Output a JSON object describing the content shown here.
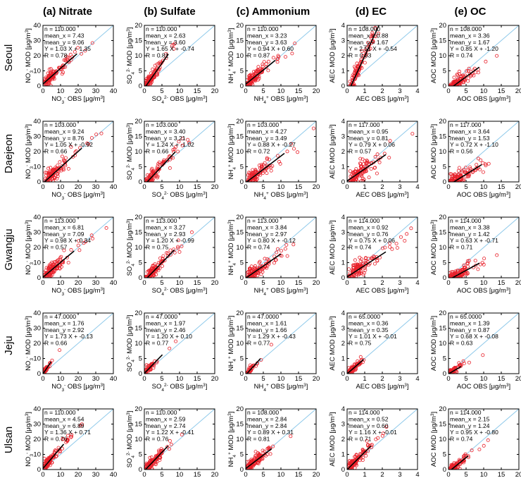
{
  "column_titles": [
    "(a) Nitrate",
    "(b) Sulfate",
    "(c) Ammonium",
    "(d) EC",
    "(e) OC"
  ],
  "row_titles": [
    "Seoul",
    "Daejeon",
    "Gwangju",
    "Jeju",
    "Ulsan"
  ],
  "colors": {
    "points": "#e8202a",
    "regression": "#000000",
    "one_to_one": "#8ec9ea",
    "axes": "#000000"
  },
  "chart_data": [
    {
      "type": "scatter",
      "species": "Nitrate",
      "site": "Seoul",
      "xlabel": "NO3- OBS [μg/m3]",
      "ylabel": "NO3- MOD [μg/m3]",
      "xlim": [
        0,
        40
      ],
      "ylim": [
        0,
        40
      ],
      "ticks": [
        0,
        10,
        20,
        30,
        40
      ],
      "n": "110.000",
      "mean_x": "7.43",
      "mean_y": "9.06",
      "fit": "1.03 X + 1.35",
      "slope": 1.03,
      "intercept": 1.35,
      "R": "0.78"
    },
    {
      "type": "scatter",
      "species": "Sulfate",
      "site": "Seoul",
      "xlabel": "SO4 2- OBS [μg/m3]",
      "ylabel": "SO4 2- MOD [μg/m3]",
      "xlim": [
        0,
        20
      ],
      "ylim": [
        0,
        20
      ],
      "ticks": [
        0,
        5,
        10,
        15,
        20
      ],
      "n": "110.000",
      "mean_x": "2.63",
      "mean_y": "3.60",
      "fit": "1.65 X + -0.74",
      "slope": 1.65,
      "intercept": -0.74,
      "R": "0.81"
    },
    {
      "type": "scatter",
      "species": "Ammonium",
      "site": "Seoul",
      "xlabel": "NH4+ OBS [μg/m3]",
      "ylabel": "NH4+ MOD [μg/m3]",
      "xlim": [
        0,
        20
      ],
      "ylim": [
        0,
        20
      ],
      "ticks": [
        0,
        5,
        10,
        15,
        20
      ],
      "n": "110.000",
      "mean_x": "3.23",
      "mean_y": "3.63",
      "fit": "0.94 X + 0.60",
      "slope": 0.94,
      "intercept": 0.6,
      "R": "0.87"
    },
    {
      "type": "scatter",
      "species": "EC",
      "site": "Seoul",
      "xlabel": "AEC OBS [μg/m3]",
      "ylabel": "AEC MOD [μg/m3]",
      "xlim": [
        0,
        4
      ],
      "ylim": [
        0,
        4
      ],
      "ticks": [
        0,
        1,
        2,
        3,
        4
      ],
      "n": "108.000",
      "mean_x": "0.88",
      "mean_y": "1.67",
      "fit": "2.51 X + -0.54",
      "slope": 2.51,
      "intercept": -0.54,
      "R": "0.63"
    },
    {
      "type": "scatter",
      "species": "OC",
      "site": "Seoul",
      "xlabel": "AOC OBS [μg/m3]",
      "ylabel": "AOC MOD [μg/m3]",
      "xlim": [
        0,
        20
      ],
      "ylim": [
        0,
        20
      ],
      "ticks": [
        0,
        5,
        10,
        15,
        20
      ],
      "n": "108.000",
      "mean_x": "3.36",
      "mean_y": "1.67",
      "fit": "0.85 X + -1.20",
      "slope": 0.85,
      "intercept": -1.2,
      "R": "0.74"
    },
    {
      "type": "scatter",
      "species": "Nitrate",
      "site": "Daejeon",
      "xlabel": "NO3- OBS [μg/m3]",
      "ylabel": "NO3- MOD [μg/m3]",
      "xlim": [
        0,
        40
      ],
      "ylim": [
        0,
        40
      ],
      "ticks": [
        0,
        10,
        20,
        30,
        40
      ],
      "n": "103.000",
      "mean_x": "9.24",
      "mean_y": "8.76",
      "fit": "1.05 X + -0.92",
      "slope": 1.05,
      "intercept": -0.92,
      "R": "0.66"
    },
    {
      "type": "scatter",
      "species": "Sulfate",
      "site": "Daejeon",
      "xlabel": "SO4 2- OBS [μg/m3]",
      "ylabel": "SO4 2- MOD [μg/m3]",
      "xlim": [
        0,
        20
      ],
      "ylim": [
        0,
        20
      ],
      "ticks": [
        0,
        5,
        10,
        15,
        20
      ],
      "n": "103.000",
      "mean_x": "3.40",
      "mean_y": "3.21",
      "fit": "1.24 X + -1.02",
      "slope": 1.24,
      "intercept": -1.02,
      "R": "0.66"
    },
    {
      "type": "scatter",
      "species": "Ammonium",
      "site": "Daejeon",
      "xlabel": "NH4+ OBS [μg/m3]",
      "ylabel": "NH4+ MOD [μg/m3]",
      "xlim": [
        0,
        20
      ],
      "ylim": [
        0,
        20
      ],
      "ticks": [
        0,
        5,
        10,
        15,
        20
      ],
      "n": "103.000",
      "mean_x": "4.27",
      "mean_y": "3.49",
      "fit": "0.88 X + -0.27",
      "slope": 0.88,
      "intercept": -0.27,
      "R": "0.72"
    },
    {
      "type": "scatter",
      "species": "EC",
      "site": "Daejeon",
      "xlabel": "AEC OBS [μg/m3]",
      "ylabel": "AEC MOD [μg/m3]",
      "xlim": [
        0,
        4
      ],
      "ylim": [
        0,
        4
      ],
      "ticks": [
        0,
        1,
        2,
        3,
        4
      ],
      "n": "117.000",
      "mean_x": "0.95",
      "mean_y": "0.81",
      "fit": "0.79 X + 0.06",
      "slope": 0.79,
      "intercept": 0.06,
      "R": "0.57"
    },
    {
      "type": "scatter",
      "species": "OC",
      "site": "Daejeon",
      "xlabel": "AOC OBS [μg/m3]",
      "ylabel": "AOC MOD [μg/m3]",
      "xlim": [
        0,
        20
      ],
      "ylim": [
        0,
        20
      ],
      "ticks": [
        0,
        5,
        10,
        15,
        20
      ],
      "n": "117.000",
      "mean_x": "3.64",
      "mean_y": "1.53",
      "fit": "0.72 X + -1.10",
      "slope": 0.72,
      "intercept": -1.1,
      "R": "0.56"
    },
    {
      "type": "scatter",
      "species": "Nitrate",
      "site": "Gwangju",
      "xlabel": "NO3- OBS [μg/m3]",
      "ylabel": "NO3- MOD [μg/m3]",
      "xlim": [
        0,
        40
      ],
      "ylim": [
        0,
        40
      ],
      "ticks": [
        0,
        10,
        20,
        30,
        40
      ],
      "n": "113.000",
      "mean_x": "6.81",
      "mean_y": "7.09",
      "fit": "0.98 X + 0.34",
      "slope": 0.98,
      "intercept": 0.34,
      "R": "0.57"
    },
    {
      "type": "scatter",
      "species": "Sulfate",
      "site": "Gwangju",
      "xlabel": "SO4 2- OBS [μg/m3]",
      "ylabel": "SO4 2- MOD [μg/m3]",
      "xlim": [
        0,
        20
      ],
      "ylim": [
        0,
        20
      ],
      "ticks": [
        0,
        5,
        10,
        15,
        20
      ],
      "n": "113.000",
      "mean_x": "3.27",
      "mean_y": "2.93",
      "fit": "1.20 X + -0.99",
      "slope": 1.2,
      "intercept": -0.99,
      "R": "0.75"
    },
    {
      "type": "scatter",
      "species": "Ammonium",
      "site": "Gwangju",
      "xlabel": "NH4+ OBS [μg/m3]",
      "ylabel": "NH4+ MOD [μg/m3]",
      "xlim": [
        0,
        20
      ],
      "ylim": [
        0,
        20
      ],
      "ticks": [
        0,
        5,
        10,
        15,
        20
      ],
      "n": "113.000",
      "mean_x": "3.84",
      "mean_y": "2.97",
      "fit": "0.80 X + -0.12",
      "slope": 0.8,
      "intercept": -0.12,
      "R": "0.74"
    },
    {
      "type": "scatter",
      "species": "EC",
      "site": "Gwangju",
      "xlabel": "AEC OBS [μg/m3]",
      "ylabel": "AEC MOD [μg/m3]",
      "xlim": [
        0,
        4
      ],
      "ylim": [
        0,
        4
      ],
      "ticks": [
        0,
        1,
        2,
        3,
        4
      ],
      "n": "114.000",
      "mean_x": "0.92",
      "mean_y": "0.76",
      "fit": "0.75 X + 0.06",
      "slope": 0.75,
      "intercept": 0.06,
      "R": "0.74"
    },
    {
      "type": "scatter",
      "species": "OC",
      "site": "Gwangju",
      "xlabel": "AOC OBS [μg/m3]",
      "ylabel": "AOC MOD [μg/m3]",
      "xlim": [
        0,
        20
      ],
      "ylim": [
        0,
        20
      ],
      "ticks": [
        0,
        5,
        10,
        15,
        20
      ],
      "n": "114.000",
      "mean_x": "3.38",
      "mean_y": "1.42",
      "fit": "0.63 X + -0.71",
      "slope": 0.63,
      "intercept": -0.71,
      "R": "0.71"
    },
    {
      "type": "scatter",
      "species": "Nitrate",
      "site": "Jeju",
      "xlabel": "NO3- OBS [μg/m3]",
      "ylabel": "NO3- MOD [μg/m3]",
      "xlim": [
        0,
        40
      ],
      "ylim": [
        0,
        40
      ],
      "ticks": [
        0,
        10,
        20,
        30,
        40
      ],
      "n": "47.0000",
      "mean_x": "1.76",
      "mean_y": "2.92",
      "fit": "1.73 X + -0.13",
      "slope": 1.73,
      "intercept": -0.13,
      "R": "0.66"
    },
    {
      "type": "scatter",
      "species": "Sulfate",
      "site": "Jeju",
      "xlabel": "SO4 2- OBS [μg/m3]",
      "ylabel": "SO4 2- MOD [μg/m3]",
      "xlim": [
        0,
        20
      ],
      "ylim": [
        0,
        20
      ],
      "ticks": [
        0,
        5,
        10,
        15,
        20
      ],
      "n": "47.0000",
      "mean_x": "1.97",
      "mean_y": "2.46",
      "fit": "1.20 X + 0.10",
      "slope": 1.2,
      "intercept": 0.1,
      "R": "0.77"
    },
    {
      "type": "scatter",
      "species": "Ammonium",
      "site": "Jeju",
      "xlabel": "NH4+ OBS [μg/m3]",
      "ylabel": "NH4+ MOD [μg/m3]",
      "xlim": [
        0,
        20
      ],
      "ylim": [
        0,
        20
      ],
      "ticks": [
        0,
        5,
        10,
        15,
        20
      ],
      "n": "47.0000",
      "mean_x": "1.61",
      "mean_y": "1.66",
      "fit": "1.29 X + -0.43",
      "slope": 1.29,
      "intercept": -0.43,
      "R": "0.77"
    },
    {
      "type": "scatter",
      "species": "EC",
      "site": "Jeju",
      "xlabel": "AEC OBS [μg/m3]",
      "ylabel": "AEC MOD [μg/m3]",
      "xlim": [
        0,
        4
      ],
      "ylim": [
        0,
        4
      ],
      "ticks": [
        0,
        1,
        2,
        3,
        4
      ],
      "n": "65.0000",
      "mean_x": "0.36",
      "mean_y": "0.35",
      "fit": "1.01 X + -0.01",
      "slope": 1.01,
      "intercept": -0.01,
      "R": "0.75"
    },
    {
      "type": "scatter",
      "species": "OC",
      "site": "Jeju",
      "xlabel": "AOC OBS [μg/m3]",
      "ylabel": "AOC MOD [μg/m3]",
      "xlim": [
        0,
        20
      ],
      "ylim": [
        0,
        20
      ],
      "ticks": [
        0,
        5,
        10,
        15,
        20
      ],
      "n": "65.0000",
      "mean_x": "1.39",
      "mean_y": "0.87",
      "fit": "0.68 X + -0.08",
      "slope": 0.68,
      "intercept": -0.08,
      "R": "0.63"
    },
    {
      "type": "scatter",
      "species": "Nitrate",
      "site": "Ulsan",
      "xlabel": "NO3- OBS [μg/m3]",
      "ylabel": "NO3- MOD [μg/m3]",
      "xlim": [
        0,
        40
      ],
      "ylim": [
        0,
        40
      ],
      "ticks": [
        0,
        10,
        20,
        30,
        40
      ],
      "n": "110.000",
      "mean_x": "4.54",
      "mean_y": "6.89",
      "fit": "1.36 X + 0.71",
      "slope": 1.36,
      "intercept": 0.71,
      "R": "0.76"
    },
    {
      "type": "scatter",
      "species": "Sulfate",
      "site": "Ulsan",
      "xlabel": "SO4 2- OBS [μg/m3]",
      "ylabel": "SO4 2- MOD [μg/m3]",
      "xlim": [
        0,
        20
      ],
      "ylim": [
        0,
        20
      ],
      "ticks": [
        0,
        5,
        10,
        15,
        20
      ],
      "n": "110.000",
      "mean_x": "2.59",
      "mean_y": "2.74",
      "fit": "1.22 X + -0.41",
      "slope": 1.22,
      "intercept": -0.41,
      "R": "0.76"
    },
    {
      "type": "scatter",
      "species": "Ammonium",
      "site": "Ulsan",
      "xlabel": "NH4+ OBS [μg/m3]",
      "ylabel": "NH4+ MOD [μg/m3]",
      "xlim": [
        0,
        20
      ],
      "ylim": [
        0,
        20
      ],
      "ticks": [
        0,
        5,
        10,
        15,
        20
      ],
      "n": "108.000",
      "mean_x": "2.84",
      "mean_y": "2.84",
      "fit": "0.89 X + 0.31",
      "slope": 0.89,
      "intercept": 0.31,
      "R": "0.81"
    },
    {
      "type": "scatter",
      "species": "EC",
      "site": "Ulsan",
      "xlabel": "AEC OBS [μg/m3]",
      "ylabel": "AEC MOD [μg/m3]",
      "xlim": [
        0,
        4
      ],
      "ylim": [
        0,
        4
      ],
      "ticks": [
        0,
        1,
        2,
        3,
        4
      ],
      "n": "114.000",
      "mean_x": "0.52",
      "mean_y": "0.60",
      "fit": "1.16 X + -0.01",
      "slope": 1.16,
      "intercept": -0.01,
      "R": "0.71"
    },
    {
      "type": "scatter",
      "species": "OC",
      "site": "Ulsan",
      "xlabel": "AOC OBS [μg/m3]",
      "ylabel": "AOC MOD [μg/m3]",
      "xlim": [
        0,
        20
      ],
      "ylim": [
        0,
        20
      ],
      "ticks": [
        0,
        5,
        10,
        15,
        20
      ],
      "n": "114.000",
      "mean_x": "2.15",
      "mean_y": "1.24",
      "fit": "0.95 X + -0.80",
      "slope": 0.95,
      "intercept": -0.8,
      "R": "0.74"
    }
  ]
}
